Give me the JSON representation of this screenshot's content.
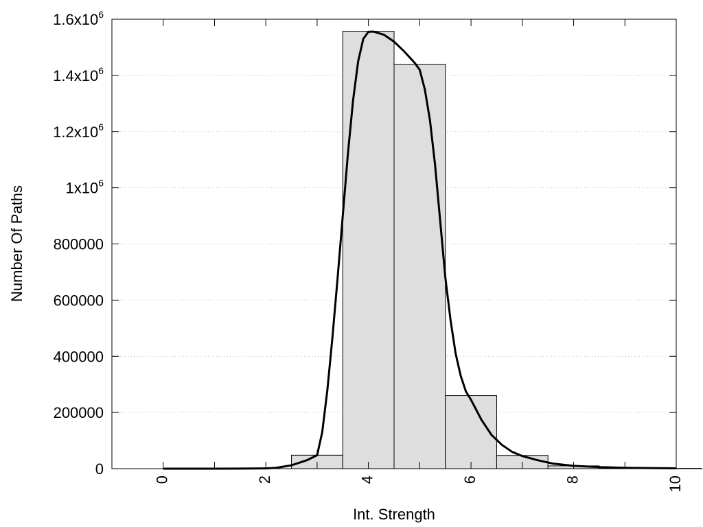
{
  "chart_data": {
    "type": "bar",
    "xlabel": "Int. Strength",
    "ylabel": "Number Of Paths",
    "xlim": [
      -1,
      10
    ],
    "ylim": [
      0,
      1600000
    ],
    "grid": "horizontal-dotted",
    "x_ticks": [
      {
        "value": 0,
        "label": "0"
      },
      {
        "value": 2,
        "label": "2"
      },
      {
        "value": 4,
        "label": "4"
      },
      {
        "value": 6,
        "label": "6"
      },
      {
        "value": 8,
        "label": "8"
      },
      {
        "value": 10,
        "label": "10"
      }
    ],
    "x_minor_ticks": [
      1,
      3,
      5,
      7,
      9
    ],
    "y_ticks": [
      {
        "value": 0,
        "label": "0",
        "exp": ""
      },
      {
        "value": 200000,
        "label": "200000",
        "exp": ""
      },
      {
        "value": 400000,
        "label": "400000",
        "exp": ""
      },
      {
        "value": 600000,
        "label": "600000",
        "exp": ""
      },
      {
        "value": 800000,
        "label": "800000",
        "exp": ""
      },
      {
        "value": 1000000,
        "label": "1x10",
        "exp": "6"
      },
      {
        "value": 1200000,
        "label": "1.2x10",
        "exp": "6"
      },
      {
        "value": 1400000,
        "label": "1.4x10",
        "exp": "6"
      },
      {
        "value": 1600000,
        "label": "1.6x10",
        "exp": "6"
      }
    ],
    "bars": [
      {
        "x": 0,
        "value": 0
      },
      {
        "x": 1,
        "value": 0
      },
      {
        "x": 2,
        "value": 0
      },
      {
        "x": 3,
        "value": 48000
      },
      {
        "x": 4,
        "value": 1557000
      },
      {
        "x": 5,
        "value": 1440000
      },
      {
        "x": 6,
        "value": 260000
      },
      {
        "x": 7,
        "value": 47000
      },
      {
        "x": 8,
        "value": 10000
      },
      {
        "x": 9,
        "value": 3000
      },
      {
        "x": 10,
        "value": 1000
      }
    ],
    "bar_width": 1,
    "bar_color": "#dedede",
    "curve_color": "#000000",
    "curve": [
      [
        0,
        0
      ],
      [
        1,
        0
      ],
      [
        1.5,
        200
      ],
      [
        2,
        1000
      ],
      [
        2.2,
        3000
      ],
      [
        2.5,
        12000
      ],
      [
        2.8,
        30000
      ],
      [
        3,
        48000
      ],
      [
        3.1,
        130000
      ],
      [
        3.2,
        280000
      ],
      [
        3.3,
        470000
      ],
      [
        3.4,
        680000
      ],
      [
        3.5,
        900000
      ],
      [
        3.6,
        1120000
      ],
      [
        3.7,
        1310000
      ],
      [
        3.8,
        1450000
      ],
      [
        3.9,
        1530000
      ],
      [
        4,
        1555000
      ],
      [
        4.1,
        1556000
      ],
      [
        4.3,
        1545000
      ],
      [
        4.5,
        1520000
      ],
      [
        4.7,
        1485000
      ],
      [
        4.9,
        1445000
      ],
      [
        5,
        1420000
      ],
      [
        5.1,
        1350000
      ],
      [
        5.2,
        1240000
      ],
      [
        5.3,
        1080000
      ],
      [
        5.4,
        880000
      ],
      [
        5.5,
        680000
      ],
      [
        5.6,
        530000
      ],
      [
        5.7,
        410000
      ],
      [
        5.8,
        330000
      ],
      [
        5.9,
        275000
      ],
      [
        6,
        245000
      ],
      [
        6.2,
        175000
      ],
      [
        6.4,
        120000
      ],
      [
        6.6,
        85000
      ],
      [
        6.8,
        60000
      ],
      [
        7,
        45000
      ],
      [
        7.3,
        30000
      ],
      [
        7.6,
        18000
      ],
      [
        8,
        10000
      ],
      [
        8.5,
        5500
      ],
      [
        9,
        3200
      ],
      [
        9.5,
        2000
      ],
      [
        10,
        1200
      ]
    ]
  }
}
